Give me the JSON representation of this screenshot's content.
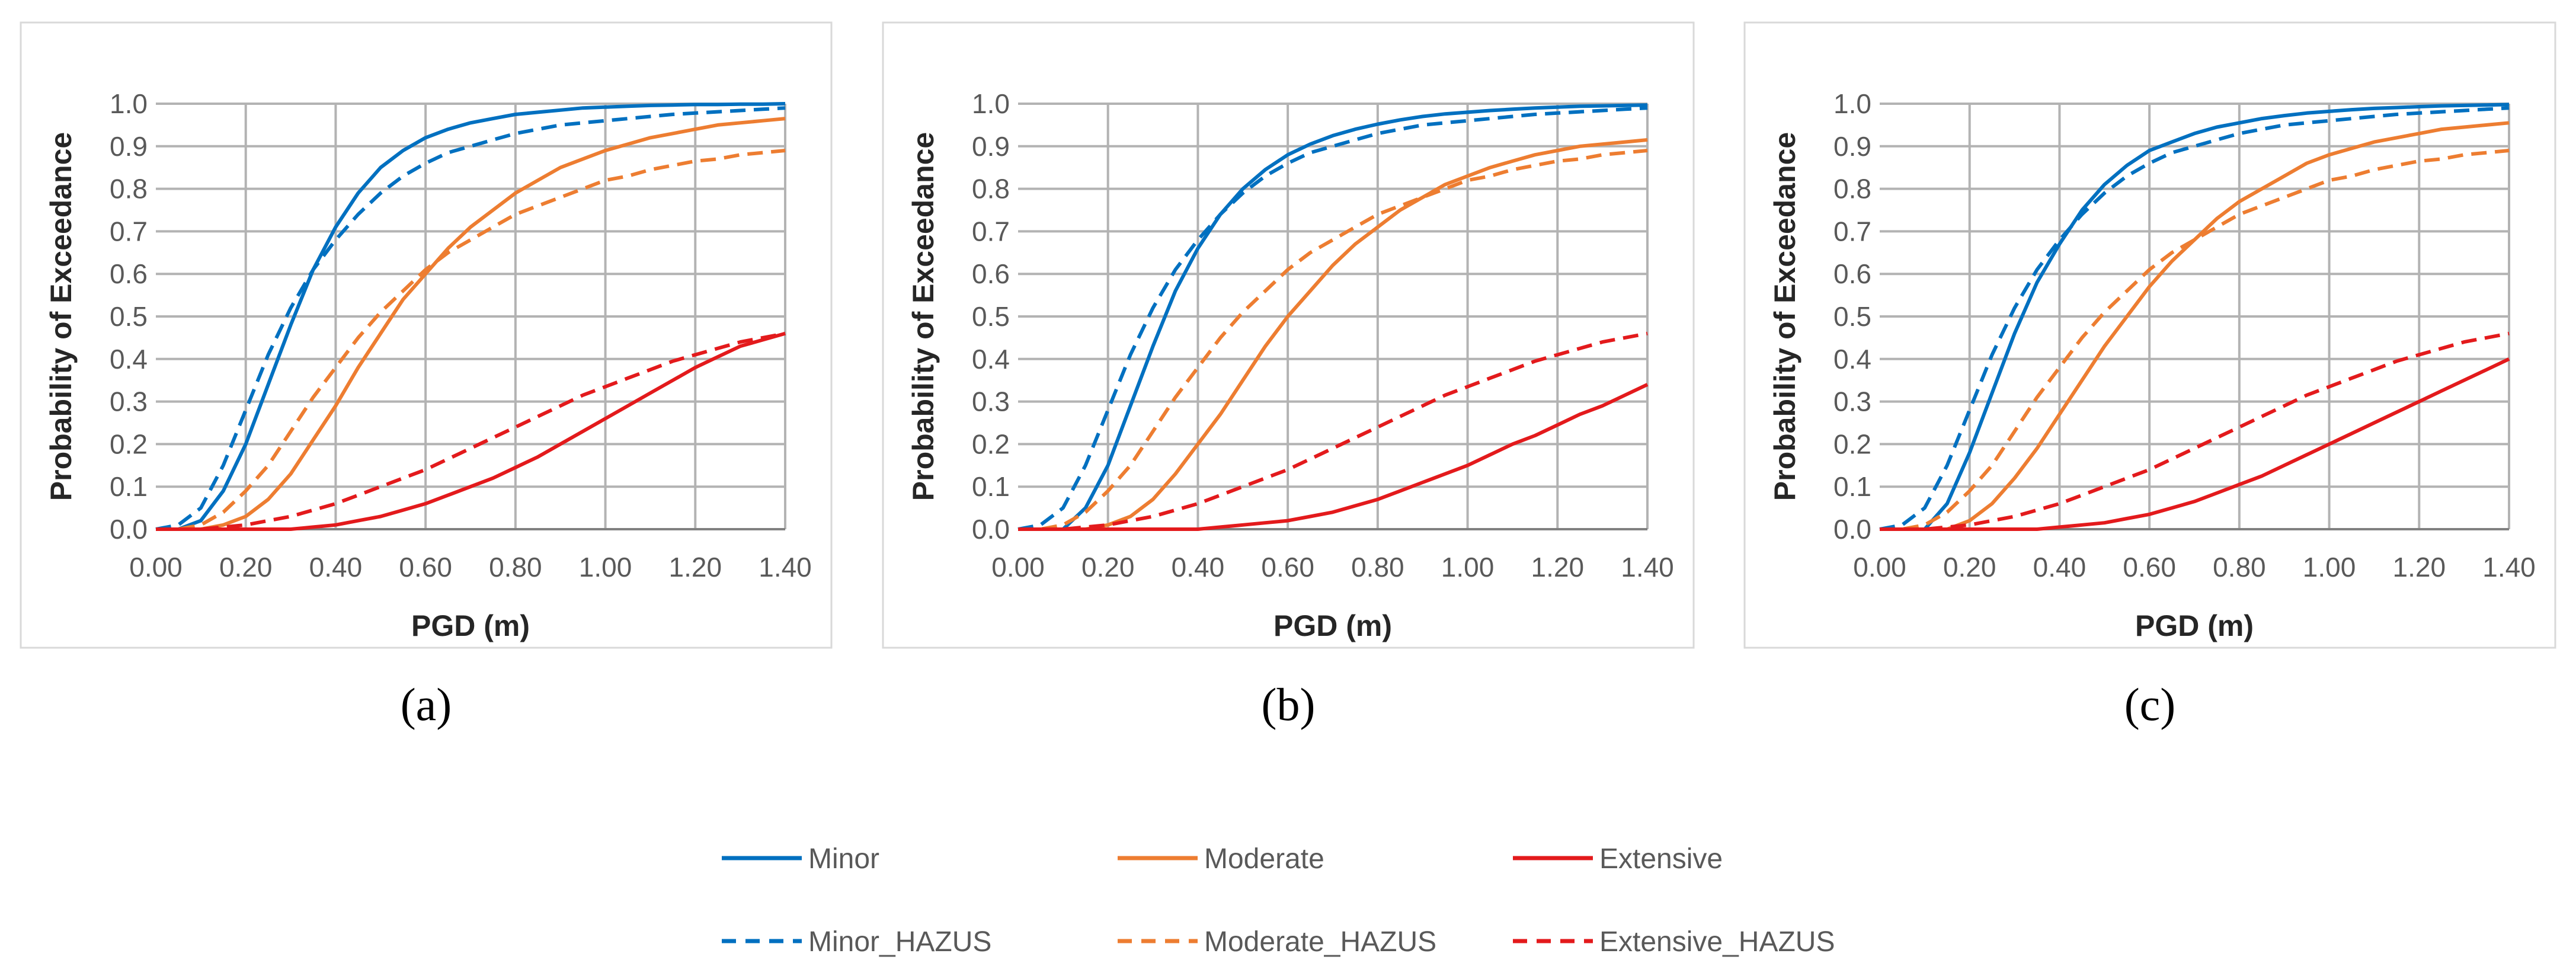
{
  "figure": {
    "captions": [
      "(a)",
      "(b)",
      "(c)"
    ],
    "legend": [
      {
        "label": "Minor",
        "color": "#0070C0",
        "dash": "solid"
      },
      {
        "label": "Moderate",
        "color": "#ED7D31",
        "dash": "solid"
      },
      {
        "label": "Extensive",
        "color": "#E31A1C",
        "dash": "solid"
      },
      {
        "label": "Minor_HAZUS",
        "color": "#0070C0",
        "dash": "dashed"
      },
      {
        "label": "Moderate_HAZUS",
        "color": "#ED7D31",
        "dash": "dashed"
      },
      {
        "label": "Extensive_HAZUS",
        "color": "#E31A1C",
        "dash": "dashed"
      }
    ]
  },
  "chart_data": [
    {
      "type": "line",
      "panel": "(a)",
      "xlabel": "PGD (m)",
      "ylabel": "Probability of Exceedance",
      "xlim": [
        0,
        1.4
      ],
      "ylim": [
        0,
        1.0
      ],
      "xticks": [
        "0.00",
        "0.20",
        "0.40",
        "0.60",
        "0.80",
        "1.00",
        "1.20",
        "1.40"
      ],
      "yticks": [
        "0.0",
        "0.1",
        "0.2",
        "0.3",
        "0.4",
        "0.5",
        "0.6",
        "0.7",
        "0.8",
        "0.9",
        "1.0"
      ],
      "grid": true,
      "x": [
        0.0,
        0.05,
        0.1,
        0.15,
        0.2,
        0.25,
        0.3,
        0.35,
        0.4,
        0.45,
        0.5,
        0.55,
        0.6,
        0.65,
        0.7,
        0.75,
        0.8,
        0.85,
        0.9,
        0.95,
        1.0,
        1.05,
        1.1,
        1.15,
        1.2,
        1.25,
        1.3,
        1.35,
        1.4
      ],
      "series": [
        {
          "name": "Minor",
          "values": [
            0.0,
            0.0,
            0.02,
            0.09,
            0.2,
            0.34,
            0.48,
            0.61,
            0.71,
            0.79,
            0.85,
            0.89,
            0.92,
            0.94,
            0.955,
            0.965,
            0.975,
            0.98,
            0.985,
            0.99,
            0.992,
            0.994,
            0.996,
            0.997,
            0.998,
            0.998,
            0.999,
            0.999,
            1.0
          ]
        },
        {
          "name": "Moderate",
          "values": [
            0.0,
            0.0,
            0.0,
            0.01,
            0.03,
            0.07,
            0.13,
            0.21,
            0.29,
            0.38,
            0.46,
            0.54,
            0.6,
            0.66,
            0.71,
            0.75,
            0.79,
            0.82,
            0.85,
            0.87,
            0.89,
            0.905,
            0.92,
            0.93,
            0.94,
            0.95,
            0.955,
            0.96,
            0.965
          ]
        },
        {
          "name": "Extensive",
          "values": [
            0.0,
            0.0,
            0.0,
            0.0,
            0.0,
            0.0,
            0.0,
            0.005,
            0.01,
            0.02,
            0.03,
            0.045,
            0.06,
            0.08,
            0.1,
            0.12,
            0.145,
            0.17,
            0.2,
            0.23,
            0.26,
            0.29,
            0.32,
            0.35,
            0.38,
            0.405,
            0.43,
            0.445,
            0.46
          ]
        },
        {
          "name": "Minor_HAZUS",
          "values": [
            0.0,
            0.01,
            0.05,
            0.15,
            0.28,
            0.41,
            0.52,
            0.61,
            0.68,
            0.74,
            0.79,
            0.83,
            0.86,
            0.885,
            0.9,
            0.915,
            0.93,
            0.94,
            0.95,
            0.955,
            0.96,
            0.965,
            0.97,
            0.975,
            0.978,
            0.981,
            0.984,
            0.987,
            0.99
          ]
        },
        {
          "name": "Moderate_HAZUS",
          "values": [
            0.0,
            0.0,
            0.01,
            0.04,
            0.09,
            0.15,
            0.23,
            0.31,
            0.38,
            0.45,
            0.51,
            0.56,
            0.61,
            0.65,
            0.68,
            0.71,
            0.74,
            0.76,
            0.78,
            0.8,
            0.82,
            0.83,
            0.845,
            0.855,
            0.865,
            0.87,
            0.88,
            0.885,
            0.89
          ]
        },
        {
          "name": "Extensive_HAZUS",
          "values": [
            0.0,
            0.0,
            0.0,
            0.005,
            0.01,
            0.02,
            0.03,
            0.045,
            0.06,
            0.08,
            0.1,
            0.12,
            0.14,
            0.165,
            0.19,
            0.215,
            0.24,
            0.265,
            0.29,
            0.315,
            0.335,
            0.355,
            0.375,
            0.395,
            0.41,
            0.425,
            0.44,
            0.45,
            0.46
          ]
        }
      ]
    },
    {
      "type": "line",
      "panel": "(b)",
      "xlabel": "PGD (m)",
      "ylabel": "Probability of Exceedance",
      "xlim": [
        0,
        1.4
      ],
      "ylim": [
        0,
        1.0
      ],
      "xticks": [
        "0.00",
        "0.20",
        "0.40",
        "0.60",
        "0.80",
        "1.00",
        "1.20",
        "1.40"
      ],
      "yticks": [
        "0.0",
        "0.1",
        "0.2",
        "0.3",
        "0.4",
        "0.5",
        "0.6",
        "0.7",
        "0.8",
        "0.9",
        "1.0"
      ],
      "grid": true,
      "x": [
        0.0,
        0.05,
        0.1,
        0.15,
        0.2,
        0.25,
        0.3,
        0.35,
        0.4,
        0.45,
        0.5,
        0.55,
        0.6,
        0.65,
        0.7,
        0.75,
        0.8,
        0.85,
        0.9,
        0.95,
        1.0,
        1.05,
        1.1,
        1.15,
        1.2,
        1.25,
        1.3,
        1.35,
        1.4
      ],
      "series": [
        {
          "name": "Minor",
          "values": [
            0.0,
            0.0,
            0.0,
            0.05,
            0.15,
            0.29,
            0.43,
            0.56,
            0.66,
            0.74,
            0.8,
            0.845,
            0.88,
            0.905,
            0.925,
            0.94,
            0.952,
            0.962,
            0.97,
            0.976,
            0.98,
            0.984,
            0.987,
            0.99,
            0.992,
            0.994,
            0.995,
            0.996,
            0.997
          ]
        },
        {
          "name": "Moderate",
          "values": [
            0.0,
            0.0,
            0.0,
            0.0,
            0.01,
            0.03,
            0.07,
            0.13,
            0.2,
            0.27,
            0.35,
            0.43,
            0.5,
            0.56,
            0.62,
            0.67,
            0.71,
            0.75,
            0.78,
            0.81,
            0.83,
            0.85,
            0.865,
            0.88,
            0.89,
            0.9,
            0.905,
            0.91,
            0.915
          ]
        },
        {
          "name": "Extensive",
          "values": [
            0.0,
            0.0,
            0.0,
            0.0,
            0.0,
            0.0,
            0.0,
            0.0,
            0.0,
            0.005,
            0.01,
            0.015,
            0.02,
            0.03,
            0.04,
            0.055,
            0.07,
            0.09,
            0.11,
            0.13,
            0.15,
            0.175,
            0.2,
            0.22,
            0.245,
            0.27,
            0.29,
            0.315,
            0.34
          ]
        },
        {
          "name": "Minor_HAZUS",
          "values": [
            0.0,
            0.01,
            0.05,
            0.15,
            0.28,
            0.41,
            0.52,
            0.61,
            0.68,
            0.74,
            0.79,
            0.83,
            0.86,
            0.885,
            0.9,
            0.915,
            0.93,
            0.94,
            0.95,
            0.955,
            0.96,
            0.965,
            0.97,
            0.975,
            0.978,
            0.981,
            0.984,
            0.987,
            0.99
          ]
        },
        {
          "name": "Moderate_HAZUS",
          "values": [
            0.0,
            0.0,
            0.01,
            0.04,
            0.09,
            0.15,
            0.23,
            0.31,
            0.38,
            0.45,
            0.51,
            0.56,
            0.61,
            0.65,
            0.68,
            0.71,
            0.74,
            0.76,
            0.78,
            0.8,
            0.82,
            0.83,
            0.845,
            0.855,
            0.865,
            0.87,
            0.88,
            0.885,
            0.89
          ]
        },
        {
          "name": "Extensive_HAZUS",
          "values": [
            0.0,
            0.0,
            0.0,
            0.005,
            0.01,
            0.02,
            0.03,
            0.045,
            0.06,
            0.08,
            0.1,
            0.12,
            0.14,
            0.165,
            0.19,
            0.215,
            0.24,
            0.265,
            0.29,
            0.315,
            0.335,
            0.355,
            0.375,
            0.395,
            0.41,
            0.425,
            0.44,
            0.45,
            0.46
          ]
        }
      ]
    },
    {
      "type": "line",
      "panel": "(c)",
      "xlabel": "PGD (m)",
      "ylabel": "Probability of Exceedance",
      "xlim": [
        0,
        1.4
      ],
      "ylim": [
        0,
        1.0
      ],
      "xticks": [
        "0.00",
        "0.20",
        "0.40",
        "0.60",
        "0.80",
        "1.00",
        "1.20",
        "1.40"
      ],
      "yticks": [
        "0.0",
        "0.1",
        "0.2",
        "0.3",
        "0.4",
        "0.5",
        "0.6",
        "0.7",
        "0.8",
        "0.9",
        "1.0"
      ],
      "grid": true,
      "x": [
        0.0,
        0.05,
        0.1,
        0.15,
        0.2,
        0.25,
        0.3,
        0.35,
        0.4,
        0.45,
        0.5,
        0.55,
        0.6,
        0.65,
        0.7,
        0.75,
        0.8,
        0.85,
        0.9,
        0.95,
        1.0,
        1.05,
        1.1,
        1.15,
        1.2,
        1.25,
        1.3,
        1.35,
        1.4
      ],
      "series": [
        {
          "name": "Minor",
          "values": [
            0.0,
            0.0,
            0.0,
            0.06,
            0.18,
            0.32,
            0.46,
            0.58,
            0.67,
            0.75,
            0.81,
            0.855,
            0.89,
            0.91,
            0.93,
            0.945,
            0.955,
            0.965,
            0.972,
            0.978,
            0.982,
            0.986,
            0.989,
            0.991,
            0.993,
            0.995,
            0.996,
            0.997,
            0.998
          ]
        },
        {
          "name": "Moderate",
          "values": [
            0.0,
            0.0,
            0.0,
            0.0,
            0.02,
            0.06,
            0.12,
            0.19,
            0.27,
            0.35,
            0.43,
            0.5,
            0.57,
            0.63,
            0.68,
            0.73,
            0.77,
            0.8,
            0.83,
            0.86,
            0.88,
            0.895,
            0.91,
            0.92,
            0.93,
            0.94,
            0.945,
            0.95,
            0.955
          ]
        },
        {
          "name": "Extensive",
          "values": [
            0.0,
            0.0,
            0.0,
            0.0,
            0.0,
            0.0,
            0.0,
            0.0,
            0.005,
            0.01,
            0.015,
            0.025,
            0.035,
            0.05,
            0.065,
            0.085,
            0.105,
            0.125,
            0.15,
            0.175,
            0.2,
            0.225,
            0.25,
            0.275,
            0.3,
            0.325,
            0.35,
            0.375,
            0.4
          ]
        },
        {
          "name": "Minor_HAZUS",
          "values": [
            0.0,
            0.01,
            0.05,
            0.15,
            0.28,
            0.41,
            0.52,
            0.61,
            0.68,
            0.74,
            0.79,
            0.83,
            0.86,
            0.885,
            0.9,
            0.915,
            0.93,
            0.94,
            0.95,
            0.955,
            0.96,
            0.965,
            0.97,
            0.975,
            0.978,
            0.981,
            0.984,
            0.987,
            0.99
          ]
        },
        {
          "name": "Moderate_HAZUS",
          "values": [
            0.0,
            0.0,
            0.01,
            0.04,
            0.09,
            0.15,
            0.23,
            0.31,
            0.38,
            0.45,
            0.51,
            0.56,
            0.61,
            0.65,
            0.68,
            0.71,
            0.74,
            0.76,
            0.78,
            0.8,
            0.82,
            0.83,
            0.845,
            0.855,
            0.865,
            0.87,
            0.88,
            0.885,
            0.89
          ]
        },
        {
          "name": "Extensive_HAZUS",
          "values": [
            0.0,
            0.0,
            0.0,
            0.005,
            0.01,
            0.02,
            0.03,
            0.045,
            0.06,
            0.08,
            0.1,
            0.12,
            0.14,
            0.165,
            0.19,
            0.215,
            0.24,
            0.265,
            0.29,
            0.315,
            0.335,
            0.355,
            0.375,
            0.395,
            0.41,
            0.425,
            0.44,
            0.45,
            0.46
          ]
        }
      ]
    }
  ]
}
